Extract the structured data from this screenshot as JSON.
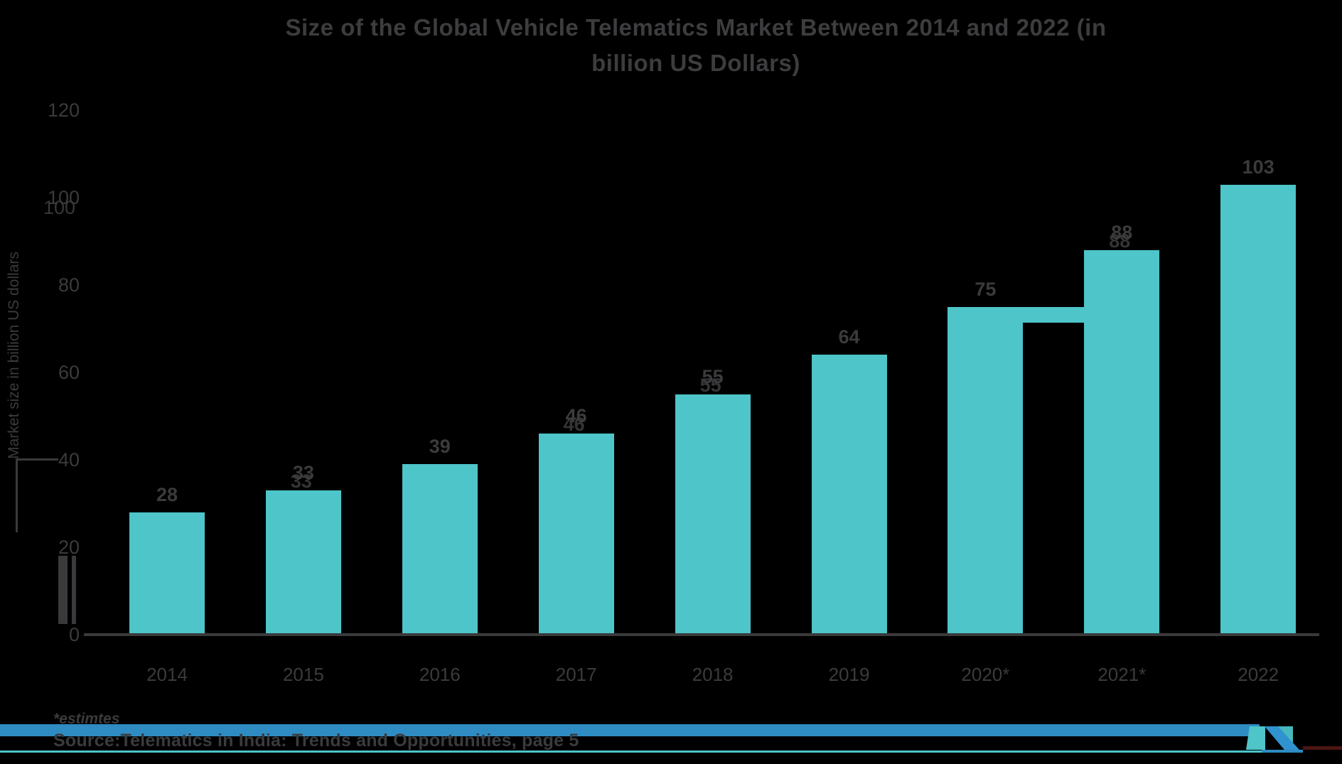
{
  "title": {
    "line1": "Size of the Global Vehicle Telematics Market Between 2014 and 2022 (in",
    "line2": "billion US Dollars)"
  },
  "y_axis": {
    "label": "Market size in billion US dollars",
    "ticks": [
      "0",
      "20",
      "40",
      "60",
      "80",
      "100",
      "120"
    ]
  },
  "chart_data": {
    "type": "bar",
    "categories": [
      "2014",
      "2015",
      "2016",
      "2017",
      "2018",
      "2019",
      "2020*",
      "2021*",
      "2022"
    ],
    "values": [
      28,
      33,
      39,
      46,
      55,
      64,
      75,
      88,
      103
    ],
    "title": "Size of the Global Vehicle Telematics Market Between 2014 and 2022 (in billion US Dollars)",
    "xlabel": "",
    "ylabel": "Market size in billion US dollars",
    "ylim": [
      0,
      120
    ],
    "ytick_step": 20,
    "grid": false,
    "legend": "none",
    "bar_color": "#4DC5C9",
    "background": "#000000"
  },
  "artifacts": {
    "ghost_bar_indices": [
      1,
      3,
      4,
      7
    ],
    "ghost_tick": "100",
    "note": "screenshot shows smeared duplicate glyphs, a ledge between 2020* and 2021* bars, and smear bars under the 20 tick"
  },
  "footnote": "*estimtes",
  "source": "Source:Telematics in India: Trends and Opportunities, page 5",
  "logo": {
    "name": "mordor-intelligence-logo"
  },
  "colors": {
    "background": "#000000",
    "bar_teal": "#4DC5C9",
    "text_gray": "#3B3B3D",
    "axis_gray": "#3A3A3C",
    "stripe_blue": "#2E8CC3",
    "logo_blue": "#3192D0",
    "logo_teal": "#4DC5C9",
    "rule_maroon": "#4A1512"
  }
}
